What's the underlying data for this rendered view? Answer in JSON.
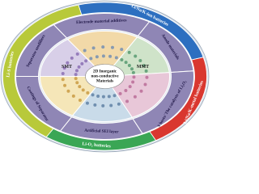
{
  "center": {
    "lines": [
      "2D Inorganic",
      "non-conductive",
      "Materials"
    ]
  },
  "outer_ring": [
    "Li/Na/K-ion batteries",
    "Li/Na/K-metal batteries",
    "Li-O₂ batteries",
    "Li-S batteries"
  ],
  "inner_ring": [
    "Electrode material additives",
    "Anode materials",
    "S hosts/ The catalysts of Li₂O₂",
    "Artificial SEI layer",
    "Coatings of Separator",
    "Separator modifiers"
  ],
  "panels": [
    "MMT",
    "SMT"
  ]
}
